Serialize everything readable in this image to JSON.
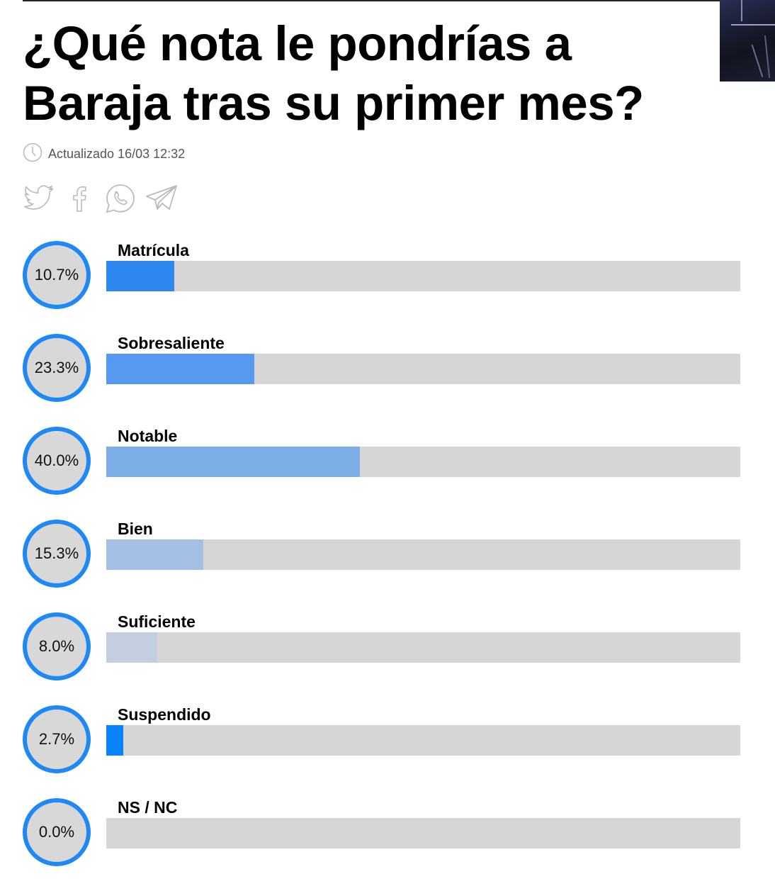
{
  "header": {
    "title": "¿Qué nota le pondrías a Baraja tras su primer mes?",
    "updated_label": "Actualizado 16/03 12:32"
  },
  "share": {
    "icons": [
      "twitter-icon",
      "facebook-icon",
      "whatsapp-icon",
      "telegram-icon"
    ]
  },
  "colors": {
    "ring": "#1e88f5",
    "track": "#d6d6d6"
  },
  "poll": {
    "options": [
      {
        "label": "Matrícula",
        "percent": 10.7,
        "percent_text": "10.7%",
        "color": "#2f87f0"
      },
      {
        "label": "Sobresaliente",
        "percent": 23.3,
        "percent_text": "23.3%",
        "color": "#559af0"
      },
      {
        "label": "Notable",
        "percent": 40.0,
        "percent_text": "40.0%",
        "color": "#7eaee8"
      },
      {
        "label": "Bien",
        "percent": 15.3,
        "percent_text": "15.3%",
        "color": "#a3c0e4"
      },
      {
        "label": "Suficiente",
        "percent": 8.0,
        "percent_text": "8.0%",
        "color": "#c3cee0"
      },
      {
        "label": "Suspendido",
        "percent": 2.7,
        "percent_text": "2.7%",
        "color": "#0a84fb"
      },
      {
        "label": "NS / NC",
        "percent": 0.0,
        "percent_text": "0.0%",
        "color": "#d6d6d6"
      }
    ]
  },
  "chart_data": {
    "type": "bar",
    "title": "¿Qué nota le pondrías a Baraja tras su primer mes?",
    "categories": [
      "Matrícula",
      "Sobresaliente",
      "Notable",
      "Bien",
      "Suficiente",
      "Suspendido",
      "NS / NC"
    ],
    "values": [
      10.7,
      23.3,
      40.0,
      15.3,
      8.0,
      2.7,
      0.0
    ],
    "xlabel": "",
    "ylabel": "%",
    "ylim": [
      0,
      100
    ],
    "orientation": "horizontal",
    "grid": false
  }
}
